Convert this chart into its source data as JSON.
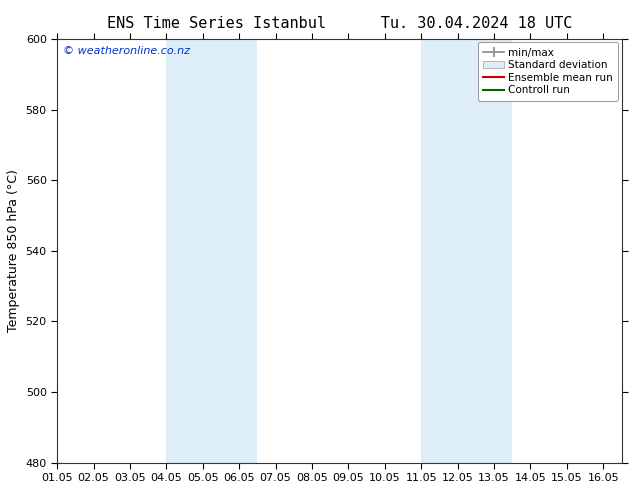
{
  "title": "ENS Time Series Istanbul      Tu. 30.04.2024 18 UTC",
  "ylabel": "Temperature 850 hPa (°C)",
  "ylim": [
    480,
    600
  ],
  "yticks": [
    480,
    500,
    520,
    540,
    560,
    580,
    600
  ],
  "xlim": [
    0.0,
    15.5
  ],
  "xtick_labels": [
    "01.05",
    "02.05",
    "03.05",
    "04.05",
    "05.05",
    "06.05",
    "07.05",
    "08.05",
    "09.05",
    "10.05",
    "11.05",
    "12.05",
    "13.05",
    "14.05",
    "15.05",
    "16.05"
  ],
  "xtick_positions": [
    0,
    1,
    2,
    3,
    4,
    5,
    6,
    7,
    8,
    9,
    10,
    11,
    12,
    13,
    14,
    15
  ],
  "shade_bands": [
    {
      "xmin": 3.0,
      "xmax": 5.5
    },
    {
      "xmin": 10.0,
      "xmax": 12.5
    }
  ],
  "shade_color": "#deeef8",
  "watermark": "© weatheronline.co.nz",
  "watermark_color": "#0033cc",
  "watermark_fontsize": 8,
  "bg_color": "#ffffff",
  "legend_entries": [
    "min/max",
    "Standard deviation",
    "Ensemble mean run",
    "Controll run"
  ],
  "title_fontsize": 11,
  "ylabel_fontsize": 9,
  "tick_fontsize": 8,
  "legend_fontsize": 7.5
}
